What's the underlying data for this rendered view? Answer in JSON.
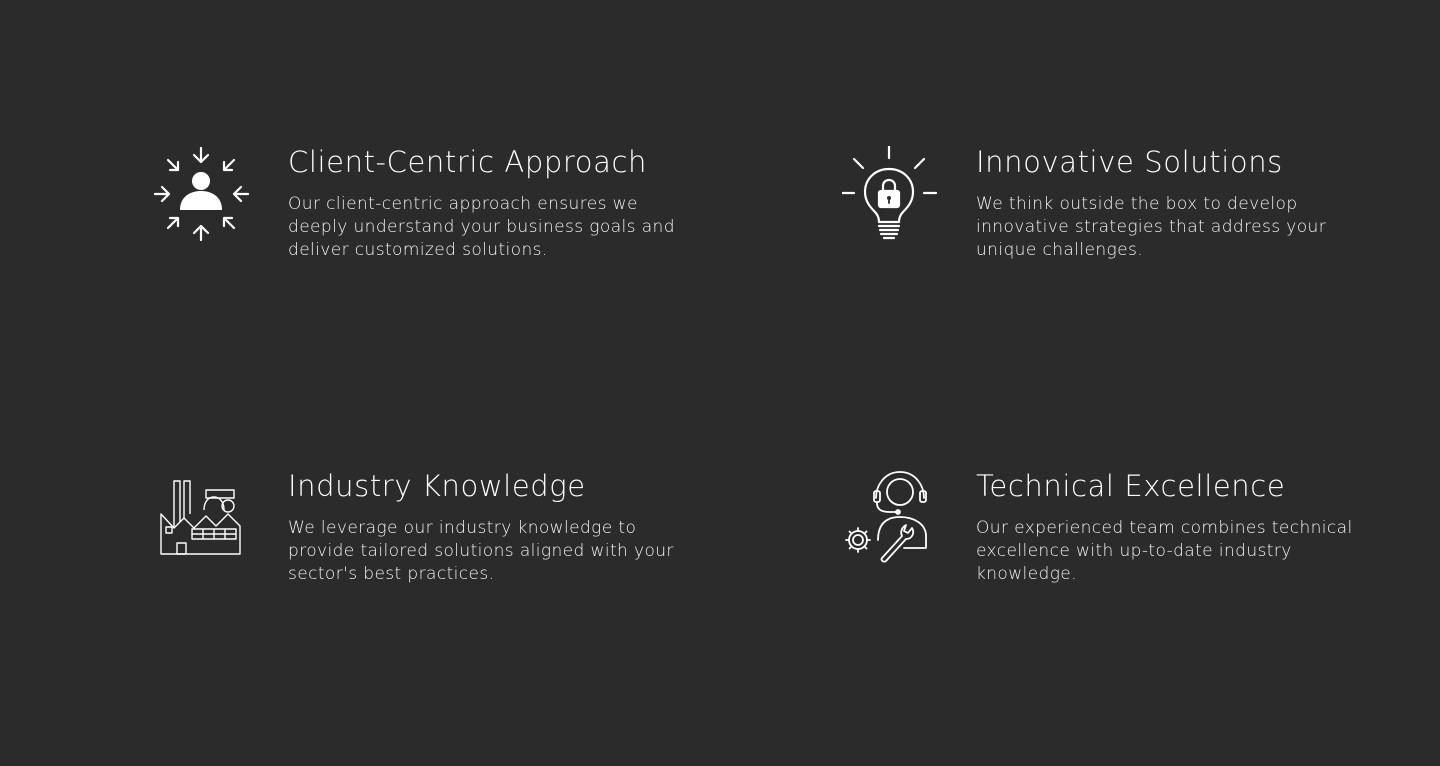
{
  "features": [
    {
      "title": "Client-Centric Approach",
      "description": "Our client-centric approach ensures we deeply understand your business goals and deliver customized solutions.",
      "icon": "client-focus-icon"
    },
    {
      "title": "Innovative Solutions",
      "description": "We think outside the box to develop innovative strategies that address your unique challenges.",
      "icon": "lightbulb-lock-icon"
    },
    {
      "title": "Industry Knowledge",
      "description": "We leverage our industry knowledge to provide tailored solutions aligned with your sector's best practices.",
      "icon": "factory-icon"
    },
    {
      "title": "Technical Excellence",
      "description": "Our experienced team combines technical excellence with up-to-date industry knowledge.",
      "icon": "support-technician-icon"
    }
  ],
  "colors": {
    "background": "#2b2b2b",
    "text": "#ffffff"
  }
}
